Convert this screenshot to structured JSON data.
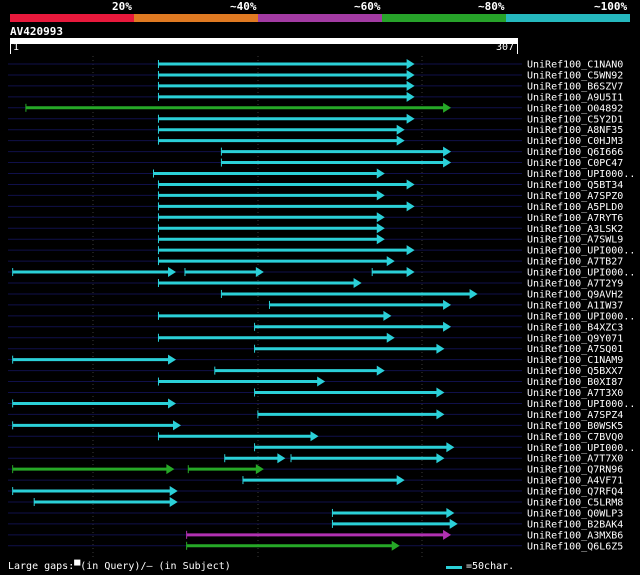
{
  "scale": {
    "labels": [
      "20%",
      "~40%",
      "~60%",
      "~80%",
      "~100%"
    ],
    "colors": [
      "#e8193c",
      "#e07a22",
      "#a33ba3",
      "#27a32a",
      "#25b8be"
    ]
  },
  "query": {
    "name": "AV420993",
    "start": "1",
    "end": "307",
    "length": 307
  },
  "colors": {
    "cyan": "#2bd0d8",
    "green": "#26a827",
    "magenta": "#b131b1",
    "row_line": "#10104a"
  },
  "hits": [
    {
      "name": "UniRef100_C1NAN0",
      "segments": [
        {
          "from": 90,
          "to": 244,
          "color": "cyan"
        }
      ]
    },
    {
      "name": "UniRef100_C5WN92",
      "segments": [
        {
          "from": 90,
          "to": 244,
          "color": "cyan"
        }
      ]
    },
    {
      "name": "UniRef100_B6SZV7",
      "segments": [
        {
          "from": 90,
          "to": 244,
          "color": "cyan"
        }
      ]
    },
    {
      "name": "UniRef100_A9U5I1",
      "segments": [
        {
          "from": 90,
          "to": 244,
          "color": "cyan"
        }
      ]
    },
    {
      "name": "UniRef100_O04892",
      "segments": [
        {
          "from": 10,
          "to": 266,
          "color": "green"
        }
      ]
    },
    {
      "name": "UniRef100_C5Y2D1",
      "segments": [
        {
          "from": 90,
          "to": 244,
          "color": "cyan"
        }
      ]
    },
    {
      "name": "UniRef100_A8NF35",
      "segments": [
        {
          "from": 90,
          "to": 238,
          "color": "cyan"
        }
      ]
    },
    {
      "name": "UniRef100_C0HJM3",
      "segments": [
        {
          "from": 90,
          "to": 238,
          "color": "cyan"
        }
      ]
    },
    {
      "name": "UniRef100_Q6I666",
      "segments": [
        {
          "from": 128,
          "to": 266,
          "color": "cyan"
        }
      ]
    },
    {
      "name": "UniRef100_C0PC47",
      "segments": [
        {
          "from": 128,
          "to": 266,
          "color": "cyan"
        }
      ]
    },
    {
      "name": "UniRef100_UPI000..",
      "segments": [
        {
          "from": 87,
          "to": 226,
          "color": "cyan"
        }
      ]
    },
    {
      "name": "UniRef100_Q5BT34",
      "segments": [
        {
          "from": 90,
          "to": 244,
          "color": "cyan"
        }
      ]
    },
    {
      "name": "UniRef100_A7SPZ0",
      "segments": [
        {
          "from": 90,
          "to": 226,
          "color": "cyan"
        }
      ]
    },
    {
      "name": "UniRef100_A5PLD0",
      "segments": [
        {
          "from": 90,
          "to": 244,
          "color": "cyan"
        }
      ]
    },
    {
      "name": "UniRef100_A7RYT6",
      "segments": [
        {
          "from": 90,
          "to": 226,
          "color": "cyan"
        }
      ]
    },
    {
      "name": "UniRef100_A3LSK2",
      "segments": [
        {
          "from": 90,
          "to": 226,
          "color": "cyan"
        }
      ]
    },
    {
      "name": "UniRef100_A7SWL9",
      "segments": [
        {
          "from": 90,
          "to": 226,
          "color": "cyan"
        }
      ]
    },
    {
      "name": "UniRef100_UPI000..",
      "segments": [
        {
          "from": 90,
          "to": 244,
          "color": "cyan"
        }
      ]
    },
    {
      "name": "UniRef100_A7TB27",
      "segments": [
        {
          "from": 90,
          "to": 232,
          "color": "cyan"
        }
      ]
    },
    {
      "name": "UniRef100_UPI000..",
      "segments": [
        {
          "from": 2,
          "to": 100,
          "color": "cyan"
        },
        {
          "from": 106,
          "to": 153,
          "color": "cyan"
        },
        {
          "from": 219,
          "to": 244,
          "color": "cyan"
        }
      ]
    },
    {
      "name": "UniRef100_A7T2Y9",
      "segments": [
        {
          "from": 90,
          "to": 212,
          "color": "cyan"
        }
      ]
    },
    {
      "name": "UniRef100_Q9AVH2",
      "segments": [
        {
          "from": 128,
          "to": 282,
          "color": "cyan"
        }
      ]
    },
    {
      "name": "UniRef100_A1IW37",
      "segments": [
        {
          "from": 157,
          "to": 266,
          "color": "cyan"
        }
      ]
    },
    {
      "name": "UniRef100_UPI000..",
      "segments": [
        {
          "from": 90,
          "to": 230,
          "color": "cyan"
        }
      ]
    },
    {
      "name": "UniRef100_B4XZC3",
      "segments": [
        {
          "from": 148,
          "to": 266,
          "color": "cyan"
        }
      ]
    },
    {
      "name": "UniRef100_Q9Y071",
      "segments": [
        {
          "from": 90,
          "to": 232,
          "color": "cyan"
        }
      ]
    },
    {
      "name": "UniRef100_A7SQ01",
      "segments": [
        {
          "from": 148,
          "to": 262,
          "color": "cyan"
        }
      ]
    },
    {
      "name": "UniRef100_C1NAM9",
      "segments": [
        {
          "from": 2,
          "to": 100,
          "color": "cyan"
        }
      ]
    },
    {
      "name": "UniRef100_Q5BXX7",
      "segments": [
        {
          "from": 124,
          "to": 226,
          "color": "cyan"
        }
      ]
    },
    {
      "name": "UniRef100_B0XI87",
      "segments": [
        {
          "from": 90,
          "to": 190,
          "color": "cyan"
        }
      ]
    },
    {
      "name": "UniRef100_A7T3X0",
      "segments": [
        {
          "from": 148,
          "to": 262,
          "color": "cyan"
        }
      ]
    },
    {
      "name": "UniRef100_UPI000..",
      "segments": [
        {
          "from": 2,
          "to": 100,
          "color": "cyan"
        }
      ]
    },
    {
      "name": "UniRef100_A7SPZ4",
      "segments": [
        {
          "from": 150,
          "to": 262,
          "color": "cyan"
        }
      ]
    },
    {
      "name": "UniRef100_B0WSK5",
      "segments": [
        {
          "from": 2,
          "to": 103,
          "color": "cyan"
        }
      ]
    },
    {
      "name": "UniRef100_C7BVQ0",
      "segments": [
        {
          "from": 90,
          "to": 186,
          "color": "cyan"
        }
      ]
    },
    {
      "name": "UniRef100_UPI000..",
      "segments": [
        {
          "from": 148,
          "to": 268,
          "color": "cyan"
        }
      ]
    },
    {
      "name": "UniRef100_A7T7X0",
      "segments": [
        {
          "from": 130,
          "to": 166,
          "color": "cyan"
        },
        {
          "from": 170,
          "to": 262,
          "color": "cyan"
        }
      ]
    },
    {
      "name": "UniRef100_Q7RN96",
      "segments": [
        {
          "from": 2,
          "to": 99,
          "color": "green"
        },
        {
          "from": 108,
          "to": 153,
          "color": "green"
        }
      ]
    },
    {
      "name": "UniRef100_A4VF71",
      "segments": [
        {
          "from": 141,
          "to": 238,
          "color": "cyan"
        }
      ]
    },
    {
      "name": "UniRef100_Q7RFQ4",
      "segments": [
        {
          "from": 2,
          "to": 101,
          "color": "cyan"
        }
      ]
    },
    {
      "name": "UniRef100_C5LRM8",
      "segments": [
        {
          "from": 15,
          "to": 101,
          "color": "cyan"
        }
      ]
    },
    {
      "name": "UniRef100_Q0WLP3",
      "segments": [
        {
          "from": 195,
          "to": 268,
          "color": "cyan"
        }
      ]
    },
    {
      "name": "UniRef100_B2BAK4",
      "segments": [
        {
          "from": 195,
          "to": 270,
          "color": "cyan"
        }
      ]
    },
    {
      "name": "UniRef100_A3MXB6",
      "segments": [
        {
          "from": 107,
          "to": 266,
          "color": "magenta"
        }
      ]
    },
    {
      "name": "UniRef100_Q6L6Z5",
      "segments": [
        {
          "from": 107,
          "to": 235,
          "color": "green"
        }
      ]
    }
  ],
  "footer": {
    "large_gaps": "Large gaps:▀(in Query)/– (in Subject)",
    "legend": "=50char."
  }
}
